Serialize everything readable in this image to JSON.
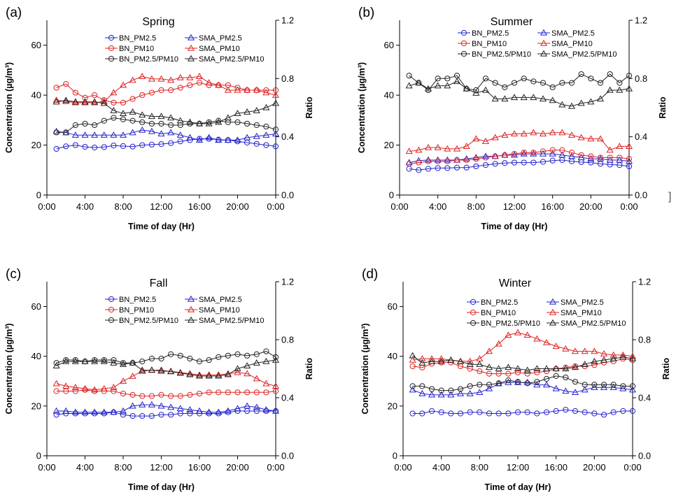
{
  "figure": {
    "stray_mark": "]"
  },
  "chart_data": [
    {
      "type": "line",
      "panel_label": "(a)",
      "title": "Spring",
      "xlabel": "Time of day (Hr)",
      "ylabel": "Concentration (µg/m³)",
      "y2label": "Ratio",
      "xlim": [
        0,
        24
      ],
      "ylim": [
        0,
        70
      ],
      "y2lim": [
        0,
        1.2
      ],
      "x_ticks": [
        "0:00",
        "4:00",
        "8:00",
        "12:00",
        "16:00",
        "20:00",
        "0:00"
      ],
      "y_ticks": [
        "0",
        "20",
        "40",
        "60"
      ],
      "y2_ticks": [
        "0.0",
        "0.4",
        "0.8",
        "1.2"
      ],
      "grid": false,
      "legend": "top, inside",
      "x": [
        1,
        2,
        3,
        4,
        5,
        6,
        7,
        8,
        9,
        10,
        11,
        12,
        13,
        14,
        15,
        16,
        17,
        18,
        19,
        20,
        21,
        22,
        23,
        24
      ],
      "series": [
        {
          "name": "BN_PM2.5",
          "color": "#2222cc",
          "marker": "circle",
          "axis": "left",
          "values": [
            18.5,
            19.5,
            20,
            19.3,
            19,
            19.2,
            19.8,
            19.6,
            19.4,
            20,
            20.2,
            20.4,
            20.8,
            21.5,
            22,
            22.5,
            22.5,
            22.2,
            22,
            21.5,
            21,
            20.5,
            20,
            19.5
          ]
        },
        {
          "name": "SMA_PM2.5",
          "color": "#2222cc",
          "marker": "triangle",
          "axis": "left",
          "values": [
            25.5,
            25,
            24,
            24,
            24,
            24,
            24,
            24,
            25,
            26,
            25.5,
            24.5,
            25,
            24,
            23,
            22,
            23,
            22,
            22,
            22,
            23,
            23.5,
            24,
            24.5
          ]
        },
        {
          "name": "BN_PM10",
          "color": "#dd2222",
          "marker": "circle",
          "axis": "left",
          "values": [
            43,
            44.5,
            41,
            39,
            40,
            38,
            37,
            37,
            38.5,
            40,
            41,
            42,
            42,
            43,
            44,
            45,
            44,
            44,
            44,
            43,
            42,
            42,
            42,
            42
          ]
        },
        {
          "name": "SMA_PM10",
          "color": "#dd2222",
          "marker": "triangle",
          "axis": "left",
          "values": [
            38,
            37.5,
            37,
            37,
            37,
            37.5,
            41,
            44,
            46,
            47.5,
            46.5,
            46.5,
            46,
            47,
            47,
            47.5,
            45,
            44,
            42,
            42,
            42,
            42,
            41,
            40
          ]
        },
        {
          "name": "BN_PM2.5/PM10",
          "color": "#222222",
          "marker": "circle",
          "axis": "right",
          "values": [
            0.43,
            0.43,
            0.48,
            0.49,
            0.48,
            0.51,
            0.53,
            0.52,
            0.51,
            0.5,
            0.49,
            0.49,
            0.48,
            0.48,
            0.49,
            0.49,
            0.5,
            0.51,
            0.5,
            0.5,
            0.49,
            0.48,
            0.47,
            0.45
          ]
        },
        {
          "name": "SMA_PM2.5/PM10",
          "color": "#222222",
          "marker": "triangle",
          "axis": "right",
          "values": [
            0.64,
            0.65,
            0.64,
            0.64,
            0.64,
            0.63,
            0.58,
            0.56,
            0.57,
            0.55,
            0.54,
            0.54,
            0.53,
            0.51,
            0.5,
            0.49,
            0.49,
            0.5,
            0.53,
            0.56,
            0.57,
            0.58,
            0.6,
            0.63
          ]
        }
      ]
    },
    {
      "type": "line",
      "panel_label": "(b)",
      "title": "Summer",
      "xlabel": "Time of day (Hr)",
      "ylabel": "Concentration (µg/m³)",
      "y2label": "Ratio",
      "xlim": [
        0,
        24
      ],
      "ylim": [
        0,
        70
      ],
      "y2lim": [
        0,
        1.2
      ],
      "x_ticks": [
        "0:00",
        "4:00",
        "8:00",
        "12:00",
        "16:00",
        "20:00",
        "0:00"
      ],
      "y_ticks": [
        "0",
        "20",
        "40",
        "60"
      ],
      "y2_ticks": [
        "0.0",
        "0.4",
        "0.8",
        "1.2"
      ],
      "grid": false,
      "legend": "top, inside",
      "x": [
        1,
        2,
        3,
        4,
        5,
        6,
        7,
        8,
        9,
        10,
        11,
        12,
        13,
        14,
        15,
        16,
        17,
        18,
        19,
        20,
        21,
        22,
        23,
        24
      ],
      "series": [
        {
          "name": "BN_PM2.5",
          "color": "#2222cc",
          "marker": "circle",
          "axis": "left",
          "values": [
            10.5,
            10,
            10.5,
            10.8,
            10.8,
            11,
            11,
            11.5,
            12,
            12.5,
            12.8,
            13,
            13,
            13,
            13.3,
            13.8,
            14,
            13.5,
            13.2,
            13,
            12.5,
            12.2,
            12,
            11.5
          ]
        },
        {
          "name": "SMA_PM2.5",
          "color": "#2222cc",
          "marker": "triangle",
          "axis": "left",
          "values": [
            13,
            13.8,
            14,
            14,
            14,
            14,
            14.5,
            15,
            15.5,
            15.5,
            16,
            16,
            16.5,
            16.5,
            16.5,
            16.5,
            16,
            15.5,
            15,
            14.5,
            14.5,
            14,
            14,
            13.5
          ]
        },
        {
          "name": "BN_PM10",
          "color": "#dd2222",
          "marker": "circle",
          "axis": "left",
          "values": [
            12.5,
            13,
            13.5,
            13.5,
            13.5,
            14,
            14,
            14.5,
            15,
            15.5,
            16,
            16.5,
            17,
            17,
            17.5,
            18,
            18,
            17,
            16,
            15.5,
            15,
            15,
            15,
            14.5
          ]
        },
        {
          "name": "SMA_PM10",
          "color": "#dd2222",
          "marker": "triangle",
          "axis": "left",
          "values": [
            17.5,
            18,
            19,
            19,
            18.5,
            18.5,
            19.5,
            22.5,
            21.5,
            23,
            24,
            24.5,
            24.5,
            25,
            24.5,
            25,
            25,
            24,
            23,
            22.5,
            22.5,
            18,
            19.5,
            19.5
          ]
        },
        {
          "name": "BN_PM2.5/PM10",
          "color": "#222222",
          "marker": "circle",
          "axis": "right",
          "values": [
            0.82,
            0.77,
            0.72,
            0.8,
            0.8,
            0.82,
            0.73,
            0.72,
            0.8,
            0.77,
            0.74,
            0.77,
            0.8,
            0.78,
            0.77,
            0.74,
            0.77,
            0.77,
            0.83,
            0.8,
            0.77,
            0.83,
            0.77,
            0.82
          ]
        },
        {
          "name": "SMA_PM2.5/PM10",
          "color": "#222222",
          "marker": "triangle",
          "axis": "right",
          "values": [
            0.75,
            0.77,
            0.73,
            0.75,
            0.75,
            0.78,
            0.73,
            0.7,
            0.72,
            0.66,
            0.66,
            0.67,
            0.67,
            0.67,
            0.66,
            0.65,
            0.62,
            0.61,
            0.63,
            0.64,
            0.66,
            0.72,
            0.72,
            0.73
          ]
        }
      ]
    },
    {
      "type": "line",
      "panel_label": "(c)",
      "title": "Fall",
      "xlabel": "Time of day (Hr)",
      "ylabel": "Concentration (µg/m³)",
      "y2label": "Ratio",
      "xlim": [
        0,
        24
      ],
      "ylim": [
        0,
        70
      ],
      "y2lim": [
        0,
        1.2
      ],
      "x_ticks": [
        "0:00",
        "4:00",
        "8:00",
        "12:00",
        "16:00",
        "20:00",
        "0:00"
      ],
      "y_ticks": [
        "0",
        "20",
        "40",
        "60"
      ],
      "y2_ticks": [
        "0.0",
        "0.4",
        "0.8",
        "1.2"
      ],
      "grid": false,
      "legend": "top, inside",
      "x": [
        1,
        2,
        3,
        4,
        5,
        6,
        7,
        8,
        9,
        10,
        11,
        12,
        13,
        14,
        15,
        16,
        17,
        18,
        19,
        20,
        21,
        22,
        23,
        24
      ],
      "series": [
        {
          "name": "BN_PM2.5",
          "color": "#2222cc",
          "marker": "circle",
          "axis": "left",
          "values": [
            16.5,
            17,
            17,
            17,
            17,
            17,
            17.5,
            16.5,
            16,
            16,
            16,
            16.5,
            16.5,
            17,
            17,
            17,
            17,
            17,
            17.5,
            18,
            18,
            18,
            18,
            18
          ]
        },
        {
          "name": "SMA_PM2.5",
          "color": "#2222cc",
          "marker": "triangle",
          "axis": "left",
          "values": [
            18,
            18,
            17.5,
            17.5,
            17.5,
            17.5,
            17.5,
            18,
            20,
            20.5,
            20.5,
            20,
            19.5,
            19,
            18.5,
            18,
            17.5,
            17.5,
            18,
            19,
            20,
            19.5,
            18.5,
            18
          ]
        },
        {
          "name": "BN_PM10",
          "color": "#dd2222",
          "marker": "circle",
          "axis": "left",
          "values": [
            26,
            26,
            26,
            26.5,
            26,
            26,
            26,
            25,
            24.5,
            24,
            24,
            24.5,
            24,
            24,
            24.5,
            25,
            25.5,
            25.5,
            25.5,
            25.5,
            25.5,
            25.5,
            25.5,
            26
          ]
        },
        {
          "name": "SMA_PM10",
          "color": "#dd2222",
          "marker": "triangle",
          "axis": "left",
          "values": [
            29,
            28,
            27.5,
            27,
            26.5,
            27,
            27.5,
            30,
            32,
            34,
            34.5,
            34,
            34,
            33.5,
            33,
            32.5,
            32.5,
            32.5,
            33,
            33.5,
            33,
            31,
            29,
            28
          ]
        },
        {
          "name": "BN_PM2.5/PM10",
          "color": "#222222",
          "marker": "circle",
          "axis": "right",
          "values": [
            0.64,
            0.66,
            0.66,
            0.65,
            0.66,
            0.66,
            0.66,
            0.64,
            0.64,
            0.65,
            0.67,
            0.67,
            0.7,
            0.69,
            0.67,
            0.65,
            0.66,
            0.68,
            0.69,
            0.7,
            0.69,
            0.7,
            0.72,
            0.68
          ]
        },
        {
          "name": "SMA_PM2.5/PM10",
          "color": "#222222",
          "marker": "triangle",
          "axis": "right",
          "values": [
            0.62,
            0.65,
            0.65,
            0.65,
            0.65,
            0.65,
            0.64,
            0.63,
            0.64,
            0.59,
            0.59,
            0.59,
            0.58,
            0.57,
            0.56,
            0.55,
            0.55,
            0.55,
            0.56,
            0.6,
            0.62,
            0.64,
            0.65,
            0.66
          ]
        }
      ]
    },
    {
      "type": "line",
      "panel_label": "(d)",
      "title": "Winter",
      "xlabel": "Time of day (Hr)",
      "ylabel": "Concentration (µg/m³)",
      "y2label": "Ratio",
      "xlim": [
        0,
        24
      ],
      "ylim": [
        0,
        70
      ],
      "y2lim": [
        0,
        1.2
      ],
      "x_ticks": [
        "0:00",
        "4:00",
        "8:00",
        "12:00",
        "16:00",
        "20:00",
        "0:00"
      ],
      "y_ticks": [
        "0",
        "20",
        "40",
        "60"
      ],
      "y2_ticks": [
        "0.0",
        "0.4",
        "0.8",
        "1.2"
      ],
      "grid": false,
      "legend": "top, inside",
      "x": [
        1,
        2,
        3,
        4,
        5,
        6,
        7,
        8,
        9,
        10,
        11,
        12,
        13,
        14,
        15,
        16,
        17,
        18,
        19,
        20,
        21,
        22,
        23,
        24
      ],
      "series": [
        {
          "name": "BN_PM2.5",
          "color": "#2222cc",
          "marker": "circle",
          "axis": "left",
          "values": [
            17,
            17,
            18,
            17.5,
            17,
            17,
            17.5,
            17.5,
            17,
            17,
            17,
            17.5,
            17.5,
            17,
            17.5,
            18,
            18.5,
            18,
            17.5,
            17,
            16.5,
            17.5,
            18,
            18
          ]
        },
        {
          "name": "SMA_PM2.5",
          "color": "#2222cc",
          "marker": "triangle",
          "axis": "left",
          "values": [
            26.5,
            25,
            24.5,
            24.5,
            24.5,
            25,
            25,
            25.5,
            27,
            29,
            29.5,
            29.5,
            29.5,
            28.5,
            28.5,
            27,
            26,
            25.5,
            26.5,
            27.5,
            27.5,
            27.5,
            27,
            26.5
          ]
        },
        {
          "name": "BN_PM10",
          "color": "#dd2222",
          "marker": "circle",
          "axis": "left",
          "values": [
            36,
            35.5,
            37,
            37.5,
            37.5,
            36,
            35,
            34,
            33,
            33,
            33,
            33.5,
            33,
            33.5,
            34,
            35,
            35.5,
            36,
            36,
            36.5,
            37.5,
            38,
            39,
            38.5
          ]
        },
        {
          "name": "SMA_PM10",
          "color": "#dd2222",
          "marker": "triangle",
          "axis": "left",
          "values": [
            38.5,
            39,
            39,
            39,
            38.5,
            38,
            38,
            39,
            42,
            45,
            48.5,
            49.5,
            48.5,
            47,
            45.5,
            44,
            43,
            42,
            42,
            42,
            41,
            40.5,
            40.5,
            40
          ]
        },
        {
          "name": "BN_PM2.5/PM10",
          "color": "#222222",
          "marker": "circle",
          "axis": "right",
          "values": [
            0.48,
            0.48,
            0.46,
            0.45,
            0.45,
            0.46,
            0.48,
            0.49,
            0.49,
            0.5,
            0.52,
            0.51,
            0.5,
            0.51,
            0.53,
            0.55,
            0.54,
            0.51,
            0.49,
            0.49,
            0.49,
            0.49,
            0.48,
            0.48
          ]
        },
        {
          "name": "SMA_PM2.5/PM10",
          "color": "#222222",
          "marker": "triangle",
          "axis": "right",
          "values": [
            0.69,
            0.64,
            0.65,
            0.65,
            0.66,
            0.65,
            0.63,
            0.63,
            0.61,
            0.6,
            0.61,
            0.6,
            0.59,
            0.6,
            0.6,
            0.6,
            0.6,
            0.61,
            0.63,
            0.65,
            0.66,
            0.67,
            0.68,
            0.67
          ]
        }
      ]
    }
  ]
}
